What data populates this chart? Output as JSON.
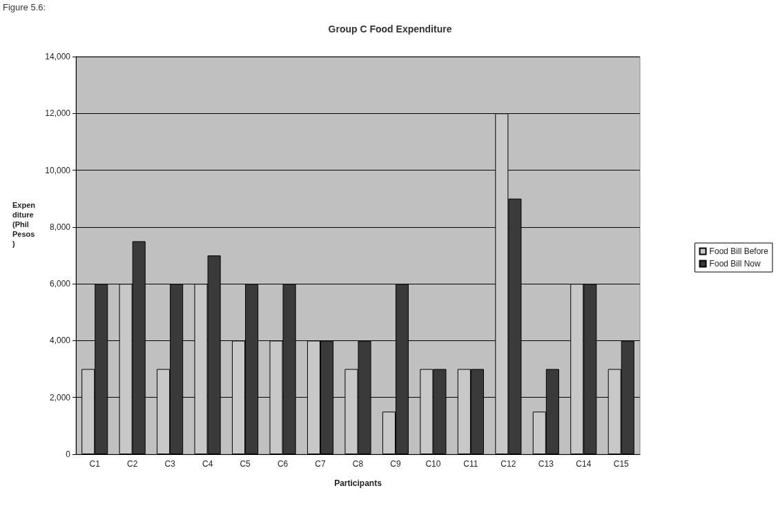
{
  "chart_data": {
    "type": "bar",
    "title": "Group C Food Expenditure",
    "xlabel": "Participants",
    "ylabel": "Expenditure (Phil Pesos)",
    "annotations": [
      "Figure 5.6:"
    ],
    "categories": [
      "C1",
      "C2",
      "C3",
      "C4",
      "C5",
      "C6",
      "C7",
      "C8",
      "C9",
      "C10",
      "C11",
      "C12",
      "C13",
      "C14",
      "C15"
    ],
    "series": [
      {
        "name": "Food Bill Before",
        "color": "#c8c8c8",
        "values": [
          3000,
          6000,
          3000,
          6000,
          4000,
          4000,
          4000,
          3000,
          1500,
          3000,
          3000,
          12000,
          1500,
          6000,
          3000
        ]
      },
      {
        "name": "Food Bill Now",
        "color": "#3a3a3a",
        "values": [
          6000,
          7500,
          6000,
          7000,
          6000,
          6000,
          4000,
          4000,
          6000,
          3000,
          3000,
          9000,
          3000,
          6000,
          4000
        ]
      }
    ],
    "ylim": [
      0,
      14000
    ],
    "yticks": [
      0,
      {
        "value": 2000,
        "label": "2,000"
      },
      {
        "value": 4000,
        "label": "4,000"
      },
      {
        "value": 6000,
        "label": "6,000"
      },
      {
        "value": 8000,
        "label": "8,000"
      },
      {
        "value": 10000,
        "label": "10,000"
      },
      {
        "value": 12000,
        "label": "12,000"
      },
      {
        "value": 14000,
        "label": "14,000"
      }
    ],
    "grid": "y",
    "legend": "right"
  }
}
